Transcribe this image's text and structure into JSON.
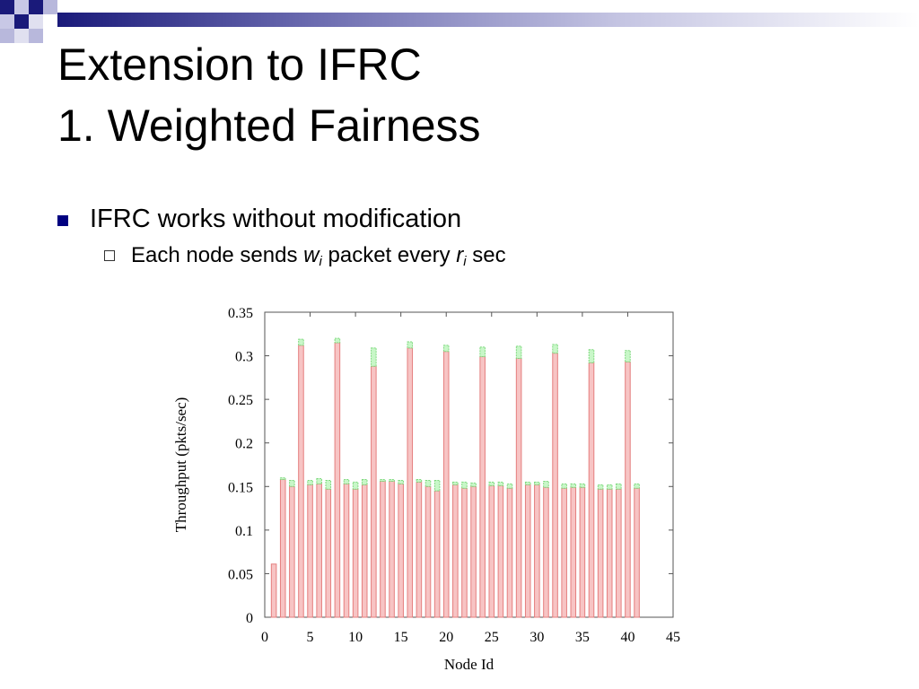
{
  "slide": {
    "title_line1": "Extension to IFRC",
    "title_line2": "1. Weighted Fairness",
    "bullet": "IFRC works without modification",
    "sub_bullet": {
      "part1": "Each node sends ",
      "w": "w",
      "w_sub": "i",
      "part2": " packet every ",
      "r": "r",
      "r_sub": "i",
      "part3": " sec"
    }
  },
  "colors": {
    "accent_dark": "#1a1a7a",
    "bullet": "#000080",
    "bar_main_fill": "#f7c4c4",
    "bar_main_stroke": "#e57f7f",
    "bar_top_fill": "#c8f7c8",
    "bar_top_stroke": "#7fd97f"
  },
  "chart_data": {
    "type": "bar",
    "stacked": true,
    "xlabel": "Node Id",
    "ylabel": "Throughput (pkts/sec)",
    "xlim": [
      0,
      45
    ],
    "ylim": [
      0,
      0.35
    ],
    "xticks": [
      0,
      5,
      10,
      15,
      20,
      25,
      30,
      35,
      40,
      45
    ],
    "yticks": [
      0,
      0.05,
      0.1,
      0.15,
      0.2,
      0.25,
      0.3,
      0.35
    ],
    "ytick_labels": [
      "0",
      "0.05",
      "0.1",
      "0.15",
      "0.2",
      "0.25",
      "0.3",
      "0.35"
    ],
    "grid": false,
    "x": [
      1,
      2,
      3,
      4,
      5,
      6,
      7,
      8,
      9,
      10,
      11,
      12,
      13,
      14,
      15,
      16,
      17,
      18,
      19,
      20,
      21,
      22,
      23,
      24,
      25,
      26,
      27,
      28,
      29,
      30,
      31,
      32,
      33,
      34,
      35,
      36,
      37,
      38,
      39,
      40,
      41
    ],
    "series": [
      {
        "values": [
          0.061,
          0.158,
          0.15,
          0.312,
          0.152,
          0.153,
          0.147,
          0.315,
          0.153,
          0.147,
          0.152,
          0.288,
          0.156,
          0.156,
          0.153,
          0.309,
          0.155,
          0.15,
          0.145,
          0.305,
          0.152,
          0.148,
          0.15,
          0.299,
          0.151,
          0.151,
          0.148,
          0.297,
          0.152,
          0.152,
          0.149,
          0.303,
          0.148,
          0.149,
          0.149,
          0.292,
          0.147,
          0.147,
          0.147,
          0.293,
          0.148
        ]
      },
      {
        "values": [
          0.0,
          0.002,
          0.007,
          0.007,
          0.005,
          0.006,
          0.01,
          0.005,
          0.005,
          0.008,
          0.006,
          0.021,
          0.002,
          0.002,
          0.004,
          0.007,
          0.003,
          0.007,
          0.012,
          0.007,
          0.003,
          0.007,
          0.004,
          0.011,
          0.004,
          0.004,
          0.005,
          0.014,
          0.003,
          0.003,
          0.007,
          0.01,
          0.005,
          0.004,
          0.004,
          0.015,
          0.005,
          0.005,
          0.006,
          0.013,
          0.005
        ]
      }
    ]
  }
}
